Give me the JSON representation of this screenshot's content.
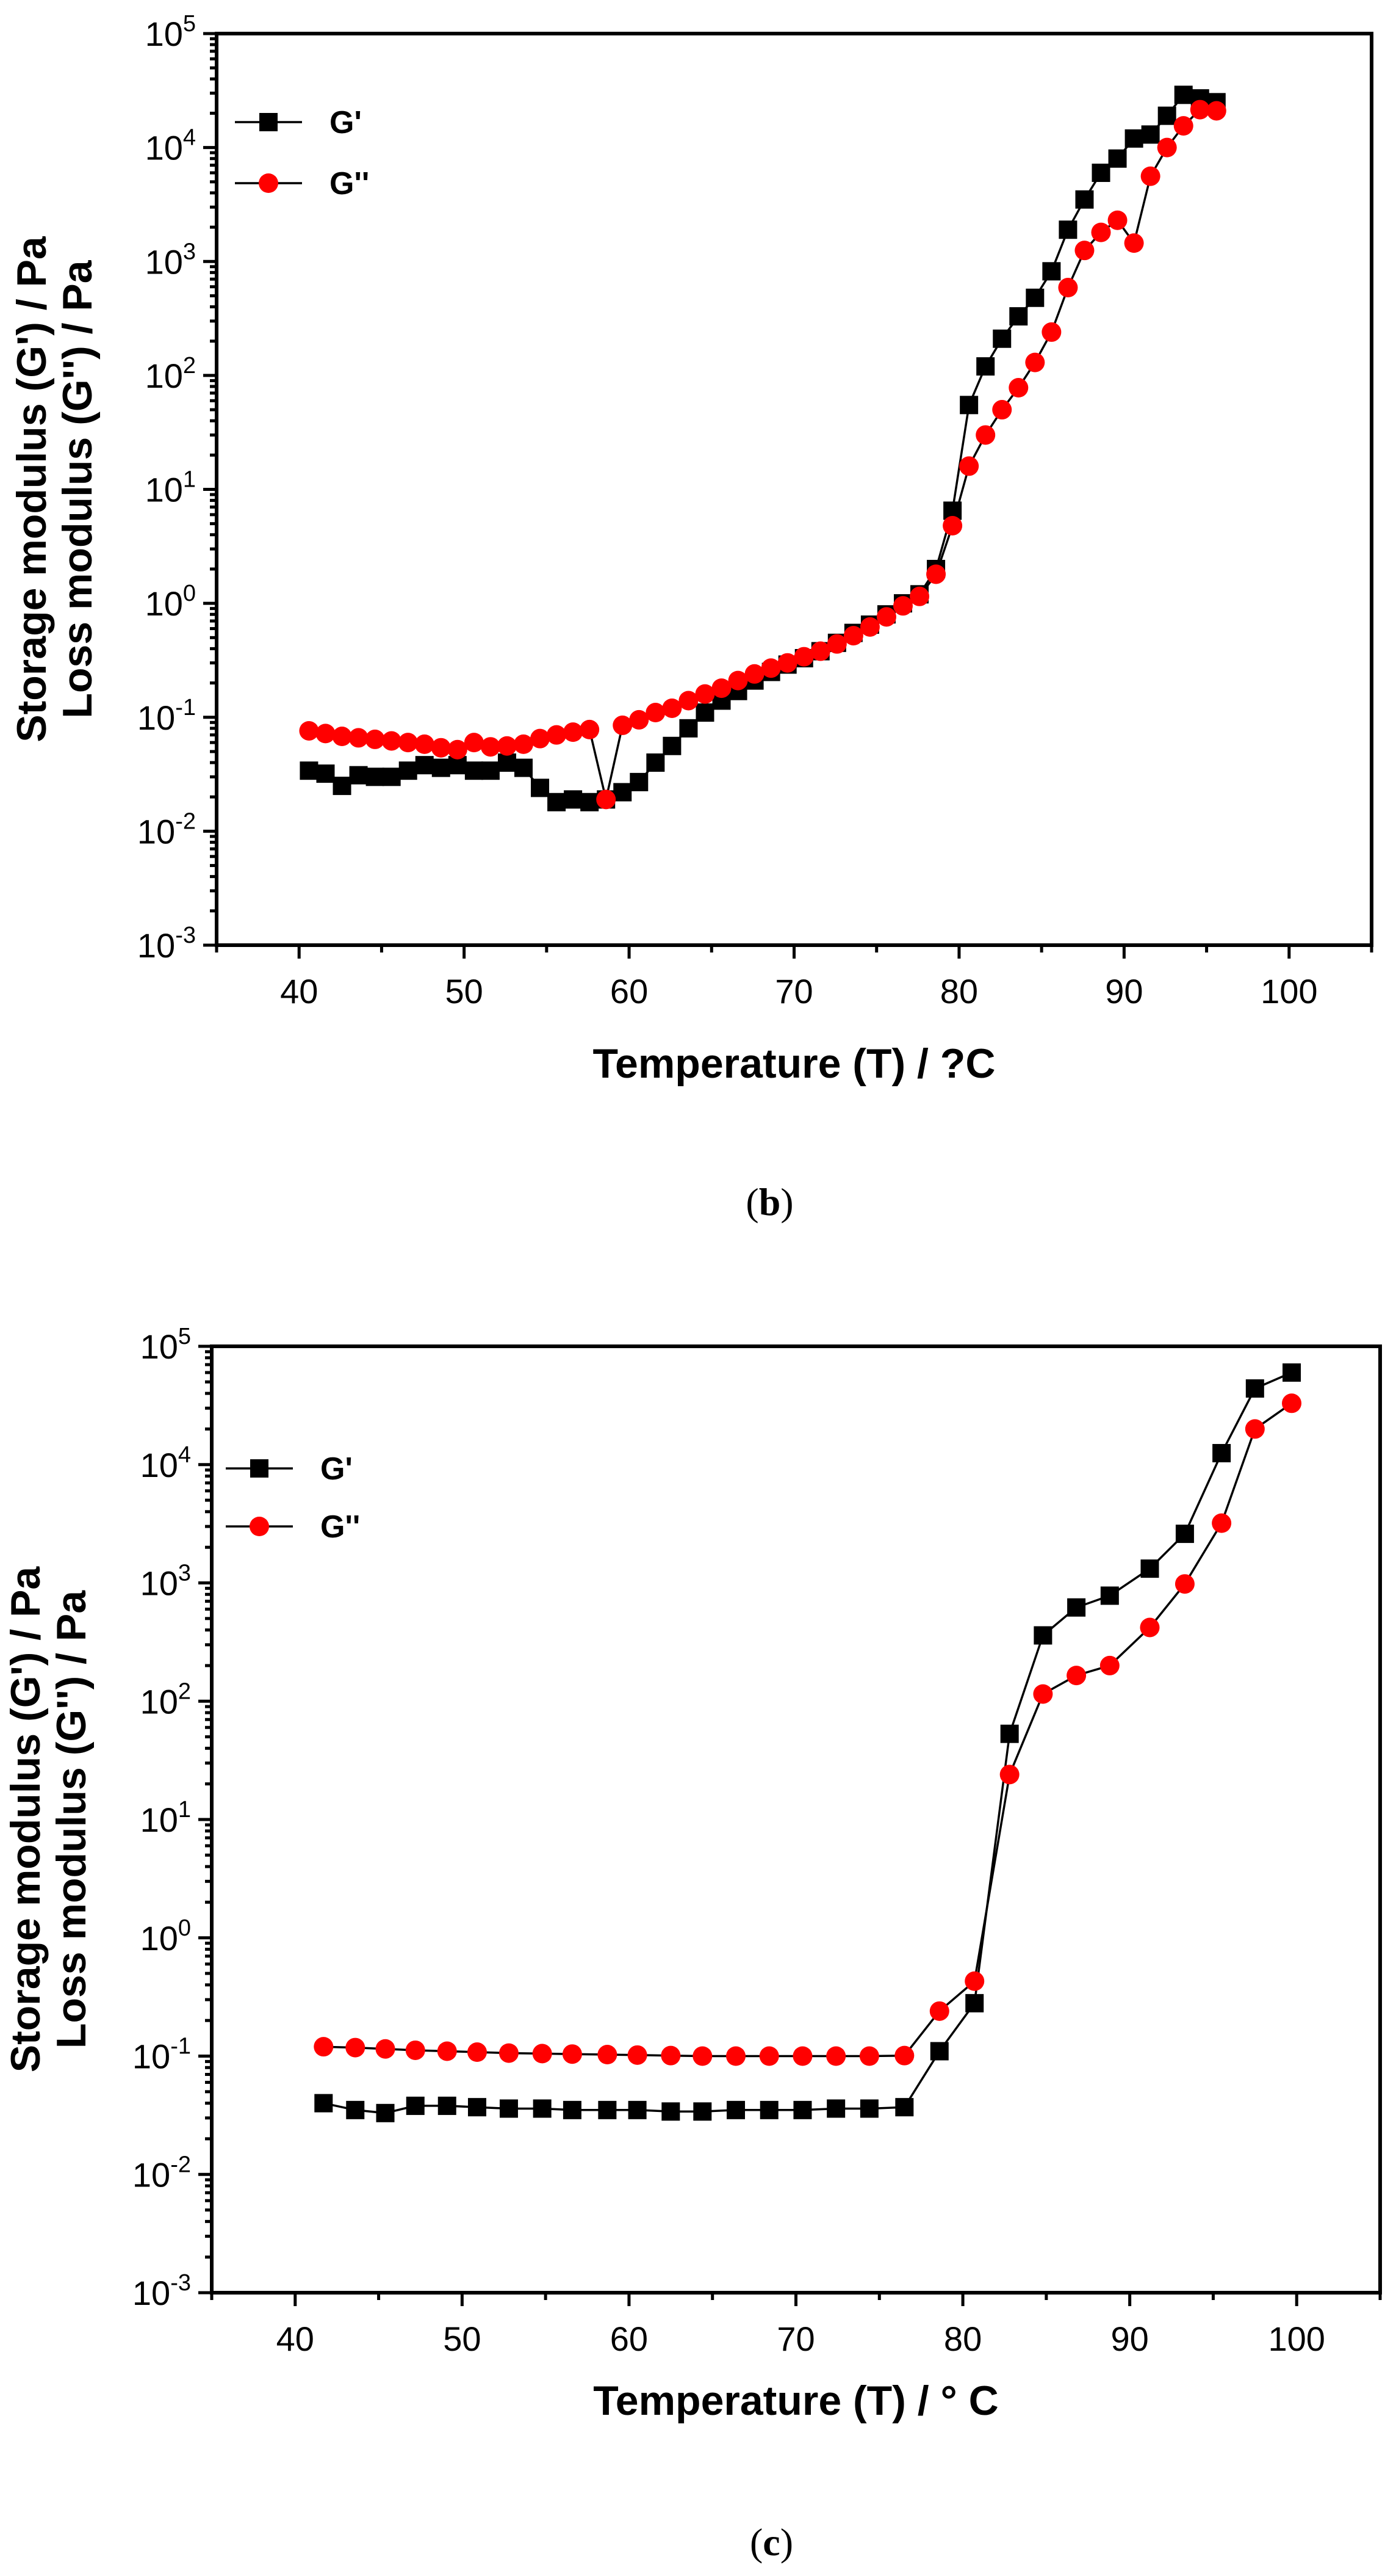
{
  "chart_data": [
    {
      "type": "scatter",
      "panel_label": "(b)",
      "xlabel": "Temperature (T) / ?C",
      "ylabel": "Storage modulus (G') / Pa",
      "ylabel2": "Loss modulus (G'') / Pa",
      "xlim": [
        35,
        105
      ],
      "ylim": [
        0.001,
        100000
      ],
      "yscale": "log",
      "xticks": [
        40,
        50,
        60,
        70,
        80,
        90,
        100
      ],
      "yticks_exp": [
        -3,
        -2,
        -1,
        0,
        1,
        2,
        3,
        4,
        5
      ],
      "legend_position": "top-left",
      "grid": false,
      "series": [
        {
          "name": "G'",
          "marker": "square",
          "color": "#000000",
          "x": [
            40.6,
            41.6,
            42.6,
            43.6,
            44.6,
            45.6,
            46.6,
            47.6,
            48.6,
            49.6,
            50.6,
            51.6,
            52.6,
            53.6,
            54.6,
            55.6,
            56.6,
            57.6,
            58.6,
            59.6,
            60.6,
            61.6,
            62.6,
            63.6,
            64.6,
            65.6,
            66.6,
            67.6,
            68.6,
            69.6,
            70.6,
            71.6,
            72.6,
            73.6,
            74.6,
            75.6,
            76.6,
            77.6,
            78.6,
            79.6,
            80.6,
            81.6,
            82.6,
            83.6,
            84.6,
            85.6,
            86.6,
            87.6,
            88.6,
            89.6,
            90.6,
            91.6,
            92.6,
            93.6,
            94.6,
            95.6
          ],
          "y": [
            0.034,
            0.032,
            0.025,
            0.031,
            0.03,
            0.03,
            0.034,
            0.038,
            0.036,
            0.038,
            0.034,
            0.034,
            0.04,
            0.036,
            0.024,
            0.018,
            0.019,
            0.018,
            0.019,
            0.022,
            0.027,
            0.04,
            0.056,
            0.08,
            0.11,
            0.14,
            0.17,
            0.21,
            0.25,
            0.29,
            0.33,
            0.38,
            0.45,
            0.55,
            0.65,
            0.8,
            1.0,
            1.2,
            2.0,
            6.5,
            55,
            120,
            210,
            330,
            480,
            820,
            1900,
            3500,
            6000,
            8000,
            12000,
            13000,
            19000,
            29000,
            27000,
            25000
          ]
        },
        {
          "name": "G''",
          "marker": "circle",
          "color": "#ff0000",
          "x": [
            40.6,
            41.6,
            42.6,
            43.6,
            44.6,
            45.6,
            46.6,
            47.6,
            48.6,
            49.6,
            50.6,
            51.6,
            52.6,
            53.6,
            54.6,
            55.6,
            56.6,
            57.6,
            58.6,
            59.6,
            60.6,
            61.6,
            62.6,
            63.6,
            64.6,
            65.6,
            66.6,
            67.6,
            68.6,
            69.6,
            70.6,
            71.6,
            72.6,
            73.6,
            74.6,
            75.6,
            76.6,
            77.6,
            78.6,
            79.6,
            80.6,
            81.6,
            82.6,
            83.6,
            84.6,
            85.6,
            86.6,
            87.6,
            88.6,
            89.6,
            90.6,
            91.6,
            92.6,
            93.6,
            94.6,
            95.6
          ],
          "y": [
            0.076,
            0.072,
            0.068,
            0.066,
            0.064,
            0.062,
            0.06,
            0.058,
            0.054,
            0.052,
            0.06,
            0.055,
            0.056,
            0.058,
            0.065,
            0.07,
            0.074,
            0.078,
            0.019,
            0.085,
            0.095,
            0.11,
            0.12,
            0.14,
            0.16,
            0.18,
            0.21,
            0.24,
            0.27,
            0.3,
            0.34,
            0.38,
            0.44,
            0.52,
            0.62,
            0.76,
            0.95,
            1.15,
            1.8,
            4.8,
            16,
            30,
            50,
            78,
            130,
            240,
            590,
            1250,
            1800,
            2300,
            1450,
            5600,
            10000,
            15500,
            21500,
            21000
          ]
        }
      ]
    },
    {
      "type": "scatter",
      "panel_label": "(c)",
      "xlabel": "Temperature (T) / ° C",
      "ylabel": "Storage modulus (G') / Pa",
      "ylabel2": "Loss modulus (G'') / Pa",
      "xlim": [
        35,
        105
      ],
      "ylim": [
        0.001,
        100000
      ],
      "yscale": "log",
      "xticks": [
        40,
        50,
        60,
        70,
        80,
        90,
        100
      ],
      "yticks_exp": [
        -3,
        -2,
        -1,
        0,
        1,
        2,
        3,
        4,
        5
      ],
      "legend_position": "top-left",
      "grid": false,
      "series": [
        {
          "name": "G'",
          "marker": "square",
          "color": "#000000",
          "x": [
            41.7,
            43.6,
            45.4,
            47.2,
            49.1,
            50.9,
            52.8,
            54.8,
            56.6,
            58.7,
            60.5,
            62.5,
            64.4,
            66.4,
            68.4,
            70.4,
            72.4,
            74.4,
            76.5,
            78.6,
            80.7,
            82.8,
            84.8,
            86.8,
            88.8,
            91.2,
            93.3,
            95.5,
            97.5,
            99.7
          ],
          "y": [
            0.04,
            0.035,
            0.033,
            0.038,
            0.038,
            0.037,
            0.036,
            0.036,
            0.035,
            0.035,
            0.035,
            0.034,
            0.034,
            0.035,
            0.035,
            0.035,
            0.036,
            0.036,
            0.037,
            0.11,
            0.28,
            53,
            360,
            620,
            780,
            1320,
            2600,
            12500,
            44000,
            60000
          ]
        },
        {
          "name": "G''",
          "marker": "circle",
          "color": "#ff0000",
          "x": [
            41.7,
            43.6,
            45.4,
            47.2,
            49.1,
            50.9,
            52.8,
            54.8,
            56.6,
            58.7,
            60.5,
            62.5,
            64.4,
            66.4,
            68.4,
            70.4,
            72.4,
            74.4,
            76.5,
            78.6,
            80.7,
            82.8,
            84.8,
            86.8,
            88.8,
            91.2,
            93.3,
            95.5,
            97.5,
            99.7
          ],
          "y": [
            0.12,
            0.118,
            0.115,
            0.112,
            0.11,
            0.108,
            0.106,
            0.105,
            0.104,
            0.103,
            0.102,
            0.101,
            0.1,
            0.1,
            0.1,
            0.1,
            0.1,
            0.1,
            0.101,
            0.24,
            0.43,
            24,
            115,
            165,
            200,
            420,
            980,
            3200,
            20000,
            33000
          ]
        }
      ]
    }
  ],
  "figure": {
    "panels": [
      {
        "caption_prefix": "(",
        "caption_letter": "b",
        "caption_suffix": ")",
        "ylabel_line1": "Storage modulus (G') / Pa",
        "ylabel_line2": "Loss modulus (G'') / Pa",
        "xlabel": "Temperature (T) / ?C",
        "legend": [
          {
            "label": "G'",
            "marker": "square"
          },
          {
            "label": "G''",
            "marker": "circle"
          }
        ]
      },
      {
        "caption_prefix": "(",
        "caption_letter": "c",
        "caption_suffix": ")",
        "ylabel_line1": "Storage modulus (G') / Pa",
        "ylabel_line2": "Loss modulus (G'') / Pa",
        "xlabel": "Temperature (T) / ° C",
        "legend": [
          {
            "label": "G'",
            "marker": "square"
          },
          {
            "label": "G''",
            "marker": "circle"
          }
        ]
      }
    ],
    "colors": {
      "g_prime": "#000000",
      "g_double_prime": "#ff0000",
      "axis": "#000000",
      "background": "#ffffff"
    }
  }
}
